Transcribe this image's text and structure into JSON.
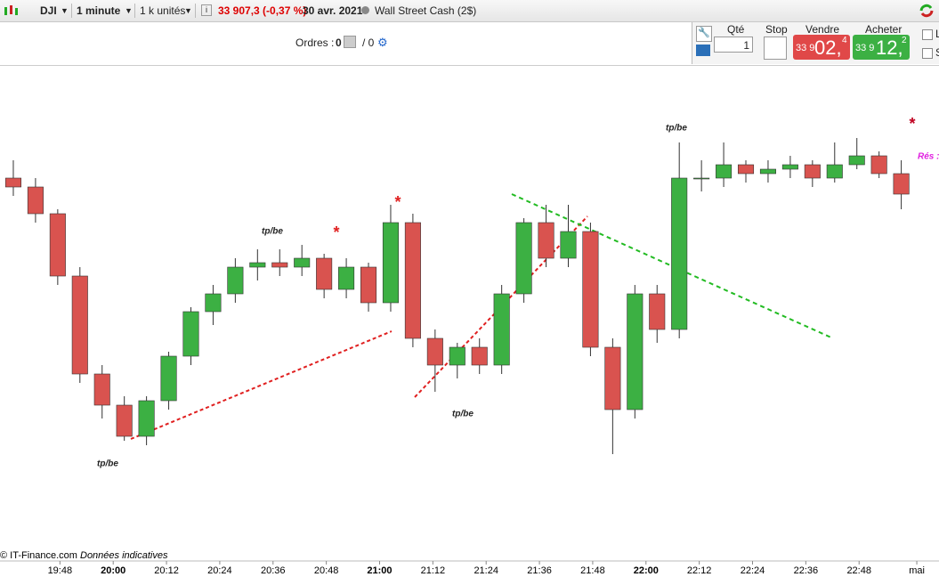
{
  "toolbar": {
    "symbol": "DJI",
    "timeframe": "1 minute",
    "units": "1 k unités",
    "price": "33 907,3 (-0,37 %)",
    "date": "30 avr. 2021",
    "instrument": "Wall Street Cash (2$)"
  },
  "order_panel": {
    "orders_label": "Ordres :",
    "orders_count": "0",
    "orders_total": "/ 0",
    "qty_label": "Qté",
    "qty": "1",
    "stop_label": "Stop",
    "sell_label": "Vendre",
    "sell_prefix": "33 9",
    "sell_main": "02,",
    "sell_suffix": "4",
    "buy_label": "Acheter",
    "buy_prefix": "33 9",
    "buy_main": "12,",
    "buy_suffix": "2",
    "check_l": "L",
    "check_s": "S"
  },
  "footer": {
    "copyright": "© IT-Finance.com",
    "note": "Données indicatives"
  },
  "chart_data": {
    "type": "candlestick",
    "up_color": "#3cb043",
    "down_color": "#d9534f",
    "x": [
      1175,
      1180,
      1185,
      1190,
      1195,
      1200,
      1205,
      1210,
      1215,
      1220,
      1225,
      1230,
      1235,
      1240,
      1245,
      1250,
      1255,
      1260,
      1265,
      1270,
      1275,
      1280,
      1285,
      1290,
      1295,
      1300,
      1305,
      1310,
      1315,
      1320,
      1325,
      1330,
      1335,
      1340,
      1345,
      1350,
      1355,
      1360,
      1365,
      1370,
      1375
    ],
    "open": [
      33906,
      33904,
      33898,
      33884,
      33862,
      33855,
      33848,
      33856,
      33866,
      33876,
      33880,
      33886,
      33887,
      33886,
      33888,
      33881,
      33886,
      33878,
      33896,
      33870,
      33864,
      33868,
      33864,
      33880,
      33896,
      33888,
      33894,
      33868,
      33854,
      33880,
      33872,
      33906,
      33906,
      33909,
      33907,
      33908,
      33909,
      33906,
      33909,
      33911,
      33907
    ],
    "high": [
      33910,
      33906,
      33899,
      33886,
      33864,
      33857,
      33857,
      33867,
      33877,
      33882,
      33888,
      33890,
      33890,
      33891,
      33889,
      33888,
      33887,
      33900,
      33898,
      33872,
      33869,
      33870,
      33882,
      33897,
      33900,
      33900,
      33896,
      33870,
      33882,
      33882,
      33914,
      33910,
      33914,
      33910,
      33910,
      33911,
      33910,
      33914,
      33915,
      33912,
      33910
    ],
    "low": [
      33902,
      33896,
      33882,
      33860,
      33852,
      33847,
      33846,
      33854,
      33864,
      33873,
      33878,
      33883,
      33884,
      33884,
      33879,
      33879,
      33876,
      33876,
      33868,
      33858,
      33861,
      33862,
      33862,
      33878,
      33886,
      33886,
      33866,
      33844,
      33852,
      33869,
      33870,
      33903,
      33904,
      33905,
      33905,
      33906,
      33904,
      33905,
      33908,
      33906,
      33899
    ],
    "close": [
      33904,
      33898,
      33884,
      33862,
      33855,
      33848,
      33856,
      33866,
      33876,
      33880,
      33886,
      33887,
      33886,
      33888,
      33881,
      33886,
      33878,
      33896,
      33870,
      33864,
      33868,
      33864,
      33880,
      33896,
      33888,
      33894,
      33868,
      33854,
      33880,
      33872,
      33906,
      33906,
      33909,
      33907,
      33908,
      33909,
      33906,
      33909,
      33911,
      33907,
      33902.4
    ],
    "xlim": [
      1174.5,
      1386
    ],
    "ylim": [
      33820,
      33930
    ],
    "xticks": [
      {
        "value": 1188,
        "label": "19:48"
      },
      {
        "value": 1200,
        "label": "20:00",
        "major": true
      },
      {
        "value": 1212,
        "label": "20:12"
      },
      {
        "value": 1224,
        "label": "20:24"
      },
      {
        "value": 1236,
        "label": "20:36"
      },
      {
        "value": 1248,
        "label": "20:48"
      },
      {
        "value": 1260,
        "label": "21:00",
        "major": true
      },
      {
        "value": 1272,
        "label": "21:12"
      },
      {
        "value": 1284,
        "label": "21:24"
      },
      {
        "value": 1296,
        "label": "21:36"
      },
      {
        "value": 1308,
        "label": "21:48"
      },
      {
        "value": 1320,
        "label": "22:00",
        "major": true
      },
      {
        "value": 1332,
        "label": "22:12"
      },
      {
        "value": 1344,
        "label": "22:24"
      },
      {
        "value": 1356,
        "label": "22:36"
      },
      {
        "value": 1368,
        "label": "22:48"
      },
      {
        "value": 1381,
        "label": "mai"
      }
    ],
    "annotations": [
      "tp/be",
      "tp/be",
      "tp/be",
      "tp/be",
      "*",
      "*",
      "*",
      "Rés :"
    ]
  }
}
